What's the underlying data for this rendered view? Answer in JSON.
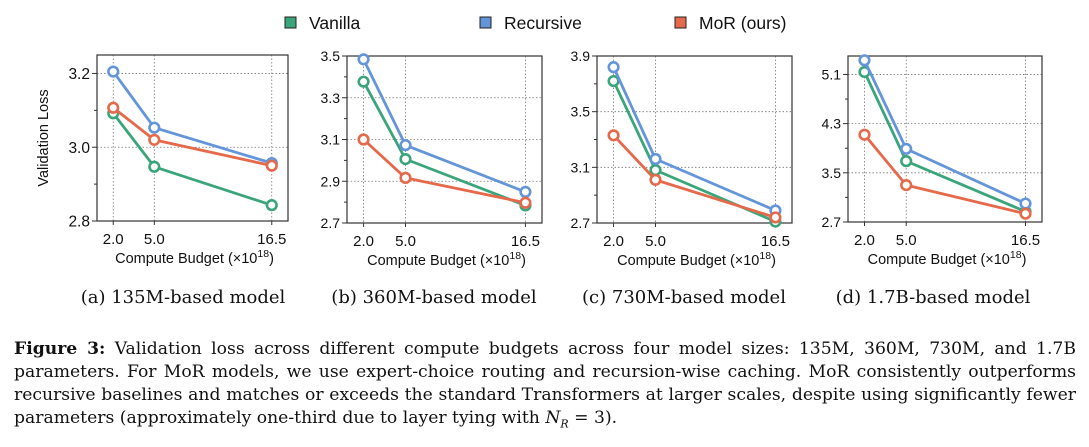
{
  "legend": {
    "items": [
      {
        "name": "Vanilla",
        "color": "#3aa57a"
      },
      {
        "name": "Recursive",
        "color": "#6495d9"
      },
      {
        "name": "MoR (ours)",
        "color": "#e5694a"
      }
    ]
  },
  "chart_data": [
    {
      "type": "line",
      "subcaption": "(a) 135M-based model",
      "xlabel": "Compute Budget (×10",
      "xlabel_sup": "18",
      "xlabel_close": ")",
      "ylabel": "Validation Loss",
      "x": [
        2.0,
        5.0,
        16.5
      ],
      "x_tick_labels": [
        "2.0",
        "5.0",
        "16.5"
      ],
      "ylim": [
        2.8,
        3.25
      ],
      "y_ticks": [
        2.8,
        3.0,
        3.2
      ],
      "y_tick_labels": [
        "2.8",
        "3.0",
        "3.2"
      ],
      "y_minor_ticks": [
        2.9,
        3.1
      ],
      "grid": true,
      "series": [
        {
          "name": "Vanilla",
          "values": [
            3.092,
            2.947,
            2.843
          ]
        },
        {
          "name": "Recursive",
          "values": [
            3.205,
            3.053,
            2.957
          ]
        },
        {
          "name": "MoR (ours)",
          "values": [
            3.107,
            3.02,
            2.95
          ]
        }
      ]
    },
    {
      "type": "line",
      "subcaption": "(b) 360M-based model",
      "xlabel": "Compute Budget (×10",
      "xlabel_sup": "18",
      "xlabel_close": ")",
      "ylabel": "",
      "x": [
        2.0,
        5.0,
        16.5
      ],
      "x_tick_labels": [
        "2.0",
        "5.0",
        "16.5"
      ],
      "ylim": [
        2.7,
        3.5
      ],
      "y_ticks": [
        2.7,
        2.9,
        3.1,
        3.3,
        3.5
      ],
      "y_tick_labels": [
        "2.7",
        "2.9",
        "3.1",
        "3.3",
        "3.5"
      ],
      "y_minor_ticks": [
        2.8,
        3.0,
        3.2,
        3.4
      ],
      "grid": true,
      "series": [
        {
          "name": "Vanilla",
          "values": [
            3.377,
            3.006,
            2.784
          ]
        },
        {
          "name": "Recursive",
          "values": [
            3.484,
            3.073,
            2.849
          ]
        },
        {
          "name": "MoR (ours)",
          "values": [
            3.1,
            2.916,
            2.797
          ]
        }
      ]
    },
    {
      "type": "line",
      "subcaption": "(c) 730M-based model",
      "xlabel": "Compute Budget (×10",
      "xlabel_sup": "18",
      "xlabel_close": ")",
      "ylabel": "",
      "x": [
        2.0,
        5.0,
        16.5
      ],
      "x_tick_labels": [
        "2.0",
        "5.0",
        "16.5"
      ],
      "ylim": [
        2.7,
        3.9
      ],
      "y_ticks": [
        2.7,
        3.1,
        3.5,
        3.9
      ],
      "y_tick_labels": [
        "2.7",
        "3.1",
        "3.5",
        "3.9"
      ],
      "y_minor_ticks": [
        2.9,
        3.3,
        3.7
      ],
      "grid": true,
      "series": [
        {
          "name": "Vanilla",
          "values": [
            3.72,
            3.08,
            2.71
          ]
        },
        {
          "name": "Recursive",
          "values": [
            3.82,
            3.16,
            2.79
          ]
        },
        {
          "name": "MoR (ours)",
          "values": [
            3.33,
            3.01,
            2.74
          ]
        }
      ]
    },
    {
      "type": "line",
      "subcaption": "(d) 1.7B-based model",
      "xlabel": "Compute Budget (×10",
      "xlabel_sup": "18",
      "xlabel_close": ")",
      "ylabel": "",
      "x": [
        2.0,
        5.0,
        16.5
      ],
      "x_tick_labels": [
        "2.0",
        "5.0",
        "16.5"
      ],
      "ylim": [
        2.7,
        5.4
      ],
      "y_ticks": [
        2.7,
        3.5,
        4.3,
        5.1
      ],
      "y_tick_labels": [
        "2.7",
        "3.5",
        "4.3",
        "5.1"
      ],
      "y_minor_ticks": [
        3.1,
        3.9,
        4.7
      ],
      "grid": true,
      "series": [
        {
          "name": "Vanilla",
          "values": [
            5.14,
            3.69,
            2.87
          ]
        },
        {
          "name": "Recursive",
          "values": [
            5.33,
            3.89,
            3.0
          ]
        },
        {
          "name": "MoR (ours)",
          "values": [
            4.12,
            3.3,
            2.835
          ]
        }
      ]
    }
  ],
  "caption": {
    "label": "Figure 3:",
    "text1": " Validation loss across different compute budgets across four model sizes: 135M, 360M, 730M, and 1.7B parameters. For MoR models, we use expert-choice routing and recursion-wise caching. MoR consistently outperforms recursive baselines and matches or exceeds the standard Transformers at larger scales, despite using significantly fewer parameters (approximately one-third due to layer tying with ",
    "math_N": "N",
    "math_sub": "R",
    "math_eq": " = 3",
    "text2": ")."
  }
}
